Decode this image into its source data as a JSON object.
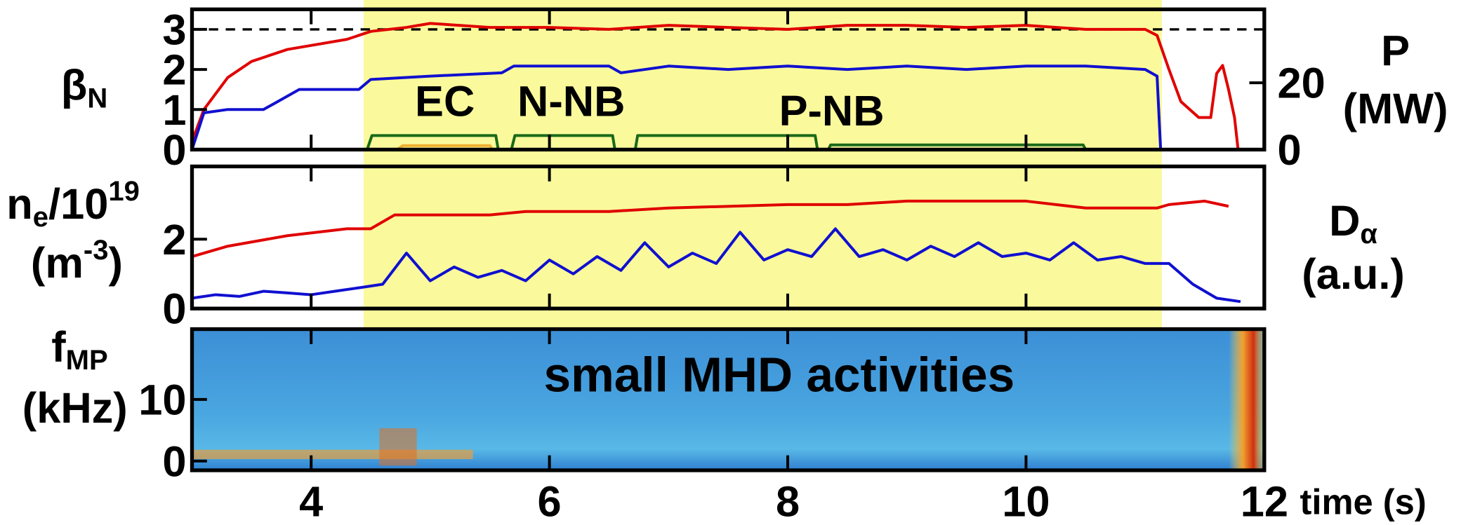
{
  "chart_data": [
    {
      "type": "line",
      "xlim": [
        3,
        12
      ],
      "ylim": [
        0,
        3.5
      ],
      "yticks": [
        0,
        1,
        2,
        3
      ],
      "y2lim": [
        0,
        42
      ],
      "y2ticks": [
        0,
        20
      ],
      "ref_line": 3,
      "shade": [
        4.44,
        11.14
      ],
      "shade_color": "#fafa9c",
      "y_label": [
        [
          {
            "text": "β"
          },
          {
            "sub": "N"
          }
        ]
      ],
      "y2_label": [
        [
          {
            "text": "P"
          }
        ],
        [
          {
            "text": "(MW)"
          }
        ]
      ],
      "series": [
        {
          "color": "#e00000",
          "x": [
            3.0,
            3.1,
            3.3,
            3.5,
            3.8,
            4.0,
            4.3,
            4.5,
            4.8,
            5.0,
            5.5,
            6.0,
            6.5,
            7.0,
            7.5,
            8.0,
            8.5,
            9.0,
            9.5,
            10.0,
            10.5,
            11.0,
            11.1,
            11.2,
            11.3,
            11.45,
            11.55,
            11.6,
            11.65,
            11.7,
            11.75,
            11.78
          ],
          "values": [
            0.2,
            1.0,
            1.8,
            2.2,
            2.5,
            2.6,
            2.75,
            2.95,
            3.05,
            3.15,
            3.05,
            3.05,
            3.0,
            3.1,
            3.05,
            3.0,
            3.1,
            3.1,
            3.05,
            3.1,
            3.0,
            3.0,
            2.85,
            2.0,
            1.2,
            0.8,
            0.8,
            1.9,
            2.1,
            1.5,
            0.8,
            0
          ]
        },
        {
          "name": "P-NB",
          "color": "#1010d0",
          "label_color": "#1a1ae0",
          "axis": "y2",
          "x": [
            3.0,
            3.1,
            3.3,
            3.6,
            3.7,
            3.9,
            4.4,
            4.5,
            5.0,
            5.6,
            5.7,
            6.0,
            6.5,
            6.6,
            7.0,
            7.5,
            8.0,
            8.5,
            9.0,
            9.5,
            10.0,
            10.5,
            11.0,
            11.1,
            11.13
          ],
          "values": [
            0,
            11,
            12,
            12,
            14,
            18,
            18,
            21,
            22,
            23,
            25,
            25,
            25,
            23,
            25,
            24,
            25,
            24,
            25,
            24,
            25,
            25,
            24,
            22,
            0
          ]
        },
        {
          "name": "N-NB",
          "color": "#1a6a1a",
          "label_color": "#22a022",
          "axis": "y2",
          "x": [
            4.47,
            4.51,
            5.55,
            5.57,
            5.6,
            5.68,
            5.71,
            6.53,
            6.55,
            6.6,
            6.72,
            6.74,
            8.23,
            8.25,
            8.3,
            8.34,
            8.36,
            10.48,
            10.5
          ],
          "values": [
            0,
            4.2,
            4.2,
            0,
            null,
            0,
            4.2,
            4.2,
            0,
            null,
            0,
            4.2,
            4.2,
            0,
            null,
            0,
            1.4,
            1.4,
            0
          ]
        },
        {
          "name": "EC",
          "color": "#f0b030",
          "label_color": "#000000",
          "axis": "y2",
          "x": [
            4.72,
            4.77,
            5.5,
            5.52
          ],
          "values": [
            0,
            1.2,
            1.2,
            0
          ]
        }
      ]
    },
    {
      "type": "line",
      "xlim": [
        3,
        12
      ],
      "ylim": [
        0,
        4.1
      ],
      "yticks": [
        0,
        2
      ],
      "y_label": [
        [
          {
            "text": "n"
          },
          {
            "sub": "e"
          },
          {
            "text": "/10"
          },
          {
            "sup": "19"
          }
        ],
        [
          {
            "text": "(m"
          },
          {
            "sup": "-3"
          },
          {
            "text": ")"
          }
        ]
      ],
      "y2_label": [
        [
          {
            "text": "D"
          },
          {
            "sub": "α"
          }
        ],
        [
          {
            "text": "(a.u.)"
          }
        ]
      ],
      "series": [
        {
          "color": "#e00000",
          "x": [
            3.0,
            3.3,
            3.8,
            4.3,
            4.5,
            4.7,
            5.0,
            5.5,
            5.8,
            6.5,
            7.0,
            8.0,
            8.5,
            9.0,
            9.5,
            10.0,
            10.5,
            11.1,
            11.2,
            11.5,
            11.7
          ],
          "values": [
            1.5,
            1.8,
            2.1,
            2.3,
            2.3,
            2.7,
            2.7,
            2.7,
            2.8,
            2.8,
            2.9,
            3.0,
            3.0,
            3.1,
            3.1,
            3.1,
            2.9,
            2.9,
            3.0,
            3.1,
            2.95
          ]
        },
        {
          "color": "#1010d0",
          "x": [
            3.0,
            3.2,
            3.4,
            3.6,
            3.8,
            4.0,
            4.2,
            4.4,
            4.6,
            4.8,
            5.0,
            5.2,
            5.4,
            5.6,
            5.8,
            6.0,
            6.2,
            6.4,
            6.6,
            6.8,
            7.0,
            7.2,
            7.4,
            7.6,
            7.8,
            8.0,
            8.2,
            8.4,
            8.6,
            8.8,
            9.0,
            9.2,
            9.4,
            9.6,
            9.8,
            10.0,
            10.2,
            10.4,
            10.6,
            10.8,
            11.0,
            11.2,
            11.4,
            11.6,
            11.8
          ],
          "values": [
            0.3,
            0.4,
            0.35,
            0.5,
            0.45,
            0.4,
            0.5,
            0.6,
            0.7,
            1.6,
            0.8,
            1.2,
            0.9,
            1.1,
            0.8,
            1.4,
            1.0,
            1.5,
            1.1,
            1.9,
            1.2,
            1.6,
            1.3,
            2.2,
            1.4,
            1.7,
            1.5,
            2.3,
            1.5,
            1.7,
            1.4,
            1.8,
            1.5,
            1.9,
            1.5,
            1.6,
            1.4,
            1.9,
            1.4,
            1.5,
            1.3,
            1.3,
            0.7,
            0.3,
            0.2
          ]
        }
      ]
    },
    {
      "type": "spectrogram",
      "xlim": [
        3,
        12
      ],
      "ylim": [
        -1.5,
        21.4
      ],
      "yticks": [
        0,
        10
      ],
      "xticks": [
        4,
        6,
        8,
        10,
        12
      ],
      "x_label": "time (s)",
      "y_label": [
        [
          {
            "text": "f"
          },
          {
            "sub": "MP"
          }
        ],
        [
          {
            "text": "(kHz)"
          }
        ]
      ],
      "annotation": "small MHD activities"
    }
  ]
}
